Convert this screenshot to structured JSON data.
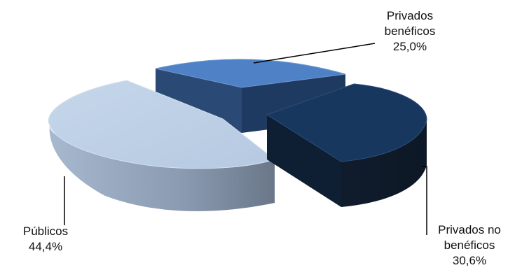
{
  "chart_data": {
    "type": "pie",
    "style": "3d-exploded",
    "slices": [
      {
        "label_lines": [
          "Privados",
          "benéficos"
        ],
        "value_label": "25,0%",
        "value": 25.0,
        "color": "#4f81c7"
      },
      {
        "label_lines": [
          "Privados no",
          "benéficos"
        ],
        "value_label": "30,6%",
        "value": 30.6,
        "color": "#17375e"
      },
      {
        "label_lines": [
          "Públicos"
        ],
        "value_label": "44,4%",
        "value": 44.4,
        "color": "#b9cde5"
      }
    ]
  }
}
